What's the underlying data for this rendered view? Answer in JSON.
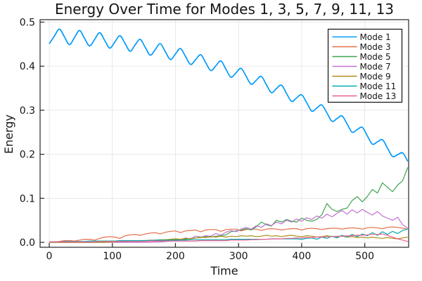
{
  "chart_data": {
    "type": "line",
    "title": "Energy Over Time for Modes 1, 3, 5, 7, 9, 11, 13",
    "xlabel": "Time",
    "ylabel": "Energy",
    "xlim": [
      -14.5,
      569.5
    ],
    "ylim": [
      -0.0112,
      0.5056
    ],
    "xticks": [
      0,
      100,
      200,
      300,
      400,
      500
    ],
    "xtick_labels": [
      "0",
      "100",
      "200",
      "300",
      "400",
      "500"
    ],
    "yticks": [
      0,
      0.1,
      0.2,
      0.3,
      0.4,
      0.5
    ],
    "ytick_labels": [
      "0.0",
      "0.1",
      "0.2",
      "0.3",
      "0.4",
      "0.5"
    ],
    "grid": true,
    "legend_position": "top-right",
    "background_color": "#ffffff",
    "axis_color": "#262626",
    "grid_color": "#e6e6e6",
    "x": [
      0,
      8,
      16,
      24,
      32,
      40,
      48,
      56,
      64,
      72,
      80,
      88,
      96,
      104,
      112,
      120,
      128,
      136,
      144,
      152,
      160,
      168,
      176,
      184,
      192,
      200,
      208,
      216,
      224,
      232,
      240,
      248,
      256,
      264,
      272,
      280,
      288,
      296,
      304,
      312,
      320,
      328,
      336,
      344,
      352,
      360,
      368,
      376,
      384,
      392,
      400,
      408,
      416,
      424,
      432,
      440,
      448,
      456,
      464,
      472,
      480,
      488,
      496,
      504,
      512,
      520,
      528,
      536,
      544,
      552,
      560,
      568
    ],
    "series": [
      {
        "name": "Mode 1",
        "color": "#009AFA",
        "smooth": true,
        "values": [
          0.451,
          0.468,
          0.484,
          0.467,
          0.449,
          0.465,
          0.481,
          0.463,
          0.446,
          0.461,
          0.476,
          0.458,
          0.441,
          0.455,
          0.469,
          0.452,
          0.434,
          0.448,
          0.461,
          0.443,
          0.425,
          0.438,
          0.451,
          0.433,
          0.415,
          0.428,
          0.44,
          0.422,
          0.404,
          0.415,
          0.426,
          0.408,
          0.39,
          0.401,
          0.412,
          0.393,
          0.375,
          0.385,
          0.395,
          0.377,
          0.359,
          0.368,
          0.377,
          0.358,
          0.34,
          0.349,
          0.357,
          0.338,
          0.32,
          0.328,
          0.335,
          0.317,
          0.298,
          0.305,
          0.312,
          0.294,
          0.275,
          0.281,
          0.287,
          0.269,
          0.25,
          0.256,
          0.261,
          0.242,
          0.223,
          0.228,
          0.233,
          0.214,
          0.195,
          0.199,
          0.203,
          0.184
        ]
      },
      {
        "name": "Mode 3",
        "color": "#E36F47",
        "smooth": false,
        "values": [
          0.001,
          0.001,
          0.002,
          0.004,
          0.004,
          0.003,
          0.005,
          0.007,
          0.007,
          0.005,
          0.009,
          0.012,
          0.013,
          0.012,
          0.009,
          0.015,
          0.017,
          0.018,
          0.016,
          0.019,
          0.021,
          0.022,
          0.019,
          0.023,
          0.025,
          0.026,
          0.022,
          0.026,
          0.027,
          0.028,
          0.024,
          0.028,
          0.029,
          0.029,
          0.025,
          0.029,
          0.03,
          0.03,
          0.026,
          0.029,
          0.03,
          0.03,
          0.027,
          0.03,
          0.031,
          0.03,
          0.028,
          0.03,
          0.031,
          0.031,
          0.028,
          0.031,
          0.032,
          0.031,
          0.029,
          0.031,
          0.032,
          0.032,
          0.03,
          0.032,
          0.033,
          0.032,
          0.03,
          0.033,
          0.034,
          0.033,
          0.031,
          0.034,
          0.035,
          0.034,
          0.032,
          0.03
        ]
      },
      {
        "name": "Mode 5",
        "color": "#3EA44E",
        "smooth": false,
        "values": [
          0.0,
          0.0,
          0.0,
          0.0,
          0.0,
          0.0,
          0.0,
          0.0,
          0.0,
          0.0,
          0.001,
          0.001,
          0.001,
          0.001,
          0.001,
          0.002,
          0.002,
          0.002,
          0.002,
          0.003,
          0.003,
          0.004,
          0.004,
          0.005,
          0.005,
          0.006,
          0.007,
          0.007,
          0.009,
          0.01,
          0.011,
          0.013,
          0.012,
          0.014,
          0.015,
          0.017,
          0.024,
          0.026,
          0.028,
          0.031,
          0.028,
          0.035,
          0.046,
          0.04,
          0.037,
          0.05,
          0.046,
          0.052,
          0.048,
          0.046,
          0.055,
          0.05,
          0.048,
          0.052,
          0.063,
          0.088,
          0.075,
          0.07,
          0.075,
          0.078,
          0.095,
          0.104,
          0.092,
          0.104,
          0.12,
          0.112,
          0.135,
          0.125,
          0.115,
          0.13,
          0.14,
          0.17
        ]
      },
      {
        "name": "Mode 7",
        "color": "#C371D2",
        "smooth": false,
        "values": [
          0.0,
          0.0,
          0.0,
          0.0,
          0.0,
          0.0,
          0.0,
          0.0,
          0.0,
          0.0,
          0.0,
          0.0,
          0.0,
          0.0,
          0.0,
          0.0,
          0.0,
          0.0,
          0.0,
          0.0,
          0.0,
          0.001,
          0.001,
          0.002,
          0.003,
          0.004,
          0.006,
          0.01,
          0.008,
          0.014,
          0.012,
          0.015,
          0.014,
          0.02,
          0.016,
          0.023,
          0.027,
          0.024,
          0.03,
          0.034,
          0.03,
          0.038,
          0.034,
          0.042,
          0.038,
          0.046,
          0.042,
          0.05,
          0.046,
          0.053,
          0.048,
          0.056,
          0.052,
          0.06,
          0.055,
          0.064,
          0.058,
          0.066,
          0.072,
          0.064,
          0.074,
          0.067,
          0.075,
          0.068,
          0.062,
          0.07,
          0.06,
          0.055,
          0.05,
          0.057,
          0.04,
          0.032
        ]
      },
      {
        "name": "Mode 9",
        "color": "#AC8E18",
        "smooth": false,
        "values": [
          0.0,
          0.0,
          0.0,
          0.0,
          0.0,
          0.0,
          0.0,
          0.0,
          0.0,
          0.0,
          0.0,
          0.0,
          0.001,
          0.001,
          0.002,
          0.002,
          0.003,
          0.003,
          0.004,
          0.004,
          0.005,
          0.005,
          0.006,
          0.006,
          0.007,
          0.008,
          0.007,
          0.009,
          0.008,
          0.01,
          0.012,
          0.011,
          0.013,
          0.012,
          0.014,
          0.012,
          0.014,
          0.013,
          0.015,
          0.014,
          0.015,
          0.013,
          0.014,
          0.016,
          0.014,
          0.015,
          0.013,
          0.015,
          0.016,
          0.014,
          0.013,
          0.015,
          0.014,
          0.012,
          0.013,
          0.015,
          0.013,
          0.012,
          0.014,
          0.012,
          0.013,
          0.011,
          0.012,
          0.01,
          0.012,
          0.01,
          0.009,
          0.011,
          0.009,
          0.008,
          0.01,
          0.012
        ]
      },
      {
        "name": "Mode 11",
        "color": "#00AAAE",
        "smooth": false,
        "values": [
          0.001,
          0.001,
          0.001,
          0.002,
          0.002,
          0.002,
          0.002,
          0.002,
          0.003,
          0.003,
          0.003,
          0.003,
          0.003,
          0.003,
          0.004,
          0.004,
          0.004,
          0.004,
          0.004,
          0.004,
          0.004,
          0.005,
          0.005,
          0.005,
          0.005,
          0.005,
          0.005,
          0.005,
          0.006,
          0.006,
          0.006,
          0.006,
          0.006,
          0.006,
          0.006,
          0.006,
          0.007,
          0.007,
          0.007,
          0.007,
          0.007,
          0.007,
          0.007,
          0.007,
          0.008,
          0.008,
          0.008,
          0.008,
          0.008,
          0.008,
          0.007,
          0.009,
          0.01,
          0.007,
          0.012,
          0.009,
          0.014,
          0.01,
          0.016,
          0.012,
          0.018,
          0.013,
          0.019,
          0.015,
          0.022,
          0.016,
          0.024,
          0.018,
          0.025,
          0.02,
          0.027,
          0.03
        ]
      },
      {
        "name": "Mode 13",
        "color": "#ED5E93",
        "smooth": false,
        "values": [
          0.001,
          0.001,
          0.001,
          0.001,
          0.001,
          0.001,
          0.001,
          0.001,
          0.001,
          0.001,
          0.002,
          0.002,
          0.002,
          0.002,
          0.002,
          0.002,
          0.002,
          0.002,
          0.002,
          0.002,
          0.003,
          0.003,
          0.003,
          0.003,
          0.003,
          0.003,
          0.003,
          0.003,
          0.003,
          0.003,
          0.004,
          0.004,
          0.004,
          0.004,
          0.004,
          0.004,
          0.005,
          0.005,
          0.005,
          0.005,
          0.006,
          0.006,
          0.007,
          0.007,
          0.008,
          0.008,
          0.008,
          0.009,
          0.009,
          0.01,
          0.01,
          0.011,
          0.011,
          0.012,
          0.012,
          0.013,
          0.013,
          0.014,
          0.014,
          0.015,
          0.015,
          0.016,
          0.016,
          0.017,
          0.018,
          0.018,
          0.019,
          0.016,
          0.012,
          0.008,
          0.005,
          0.002
        ]
      }
    ]
  }
}
